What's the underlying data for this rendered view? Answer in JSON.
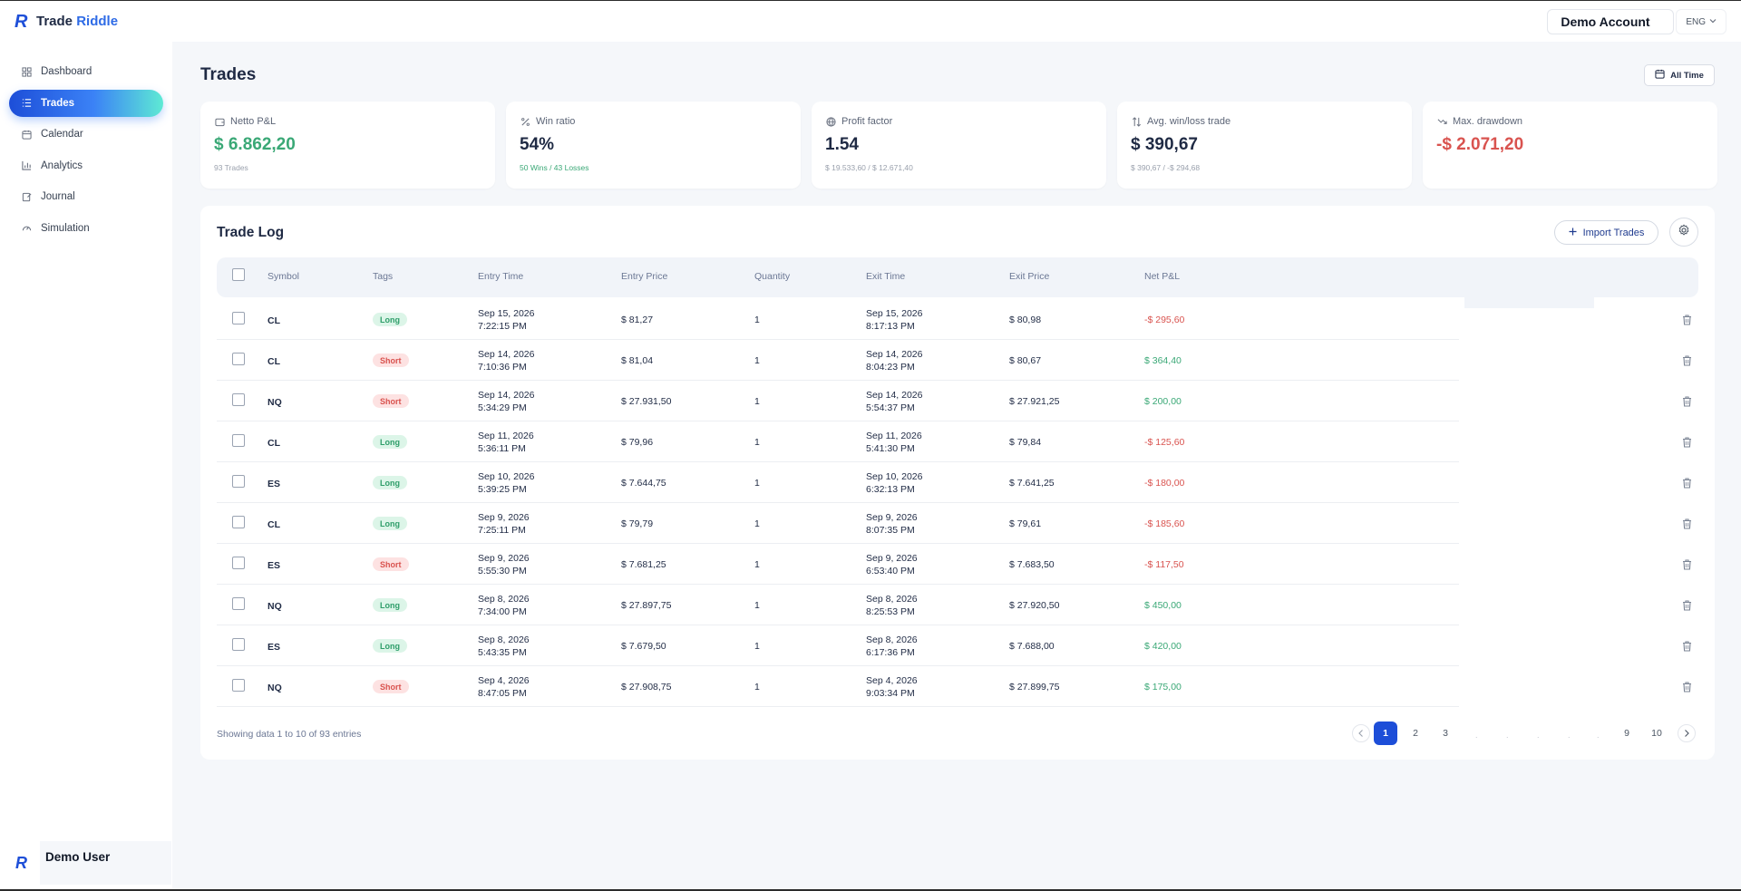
{
  "app": {
    "logo_prefix": "Trade",
    "logo_suffix": "Riddle",
    "account": "Demo Account",
    "language": "ENG",
    "user": "Demo User"
  },
  "nav": [
    {
      "label": "Dashboard",
      "icon": "dashboard-icon",
      "active": false
    },
    {
      "label": "Trades",
      "icon": "list-icon",
      "active": true
    },
    {
      "label": "Calendar",
      "icon": "calendar-icon",
      "active": false
    },
    {
      "label": "Analytics",
      "icon": "bar-chart-icon",
      "active": false
    },
    {
      "label": "Journal",
      "icon": "journal-icon",
      "active": false
    },
    {
      "label": "Simulation",
      "icon": "gauge-icon",
      "active": false
    }
  ],
  "page": {
    "title": "Trades",
    "range_button": "All Time"
  },
  "stats": [
    {
      "label": "Netto P&L",
      "icon": "wallet-icon",
      "value": "$ 6.862,20",
      "sub": "93 Trades",
      "value_tone": "pos",
      "sub_tone": ""
    },
    {
      "label": "Win ratio",
      "icon": "percent-icon",
      "value": "54%",
      "sub": "50 Wins / 43 Losses",
      "value_tone": "",
      "sub_tone": "pos"
    },
    {
      "label": "Profit factor",
      "icon": "globe-icon",
      "value": "1.54",
      "sub": "$ 19.533,60 / $ 12.671,40",
      "value_tone": "",
      "sub_tone": ""
    },
    {
      "label": "Avg. win/loss trade",
      "icon": "swap-icon",
      "value": "$ 390,67",
      "sub": "$ 390,67 / -$ 294,68",
      "value_tone": "",
      "sub_tone": ""
    },
    {
      "label": "Max. drawdown",
      "icon": "trend-down-icon",
      "value": "-$ 2.071,20",
      "sub": "",
      "value_tone": "neg",
      "sub_tone": ""
    }
  ],
  "trade_log": {
    "title": "Trade Log",
    "import_label": "Import Trades",
    "columns": [
      "Symbol",
      "Tags",
      "Entry Time",
      "Entry Price",
      "Quantity",
      "Exit Time",
      "Exit Price",
      "Net P&L"
    ],
    "rows": [
      {
        "symbol": "CL",
        "tag": "Long",
        "entry_date": "Sep 15, 2026",
        "entry_time": "7:22:15 PM",
        "entry_price": "$ 81,27",
        "qty": "1",
        "exit_date": "Sep 15, 2026",
        "exit_time": "8:17:13 PM",
        "exit_price": "$ 80,98",
        "pnl": "-$ 295,60",
        "tone": "neg"
      },
      {
        "symbol": "CL",
        "tag": "Short",
        "entry_date": "Sep 14, 2026",
        "entry_time": "7:10:36 PM",
        "entry_price": "$ 81,04",
        "qty": "1",
        "exit_date": "Sep 14, 2026",
        "exit_time": "8:04:23 PM",
        "exit_price": "$ 80,67",
        "pnl": "$ 364,40",
        "tone": "pos"
      },
      {
        "symbol": "NQ",
        "tag": "Short",
        "entry_date": "Sep 14, 2026",
        "entry_time": "5:34:29 PM",
        "entry_price": "$ 27.931,50",
        "qty": "1",
        "exit_date": "Sep 14, 2026",
        "exit_time": "5:54:37 PM",
        "exit_price": "$ 27.921,25",
        "pnl": "$ 200,00",
        "tone": "pos"
      },
      {
        "symbol": "CL",
        "tag": "Long",
        "entry_date": "Sep 11, 2026",
        "entry_time": "5:36:11 PM",
        "entry_price": "$ 79,96",
        "qty": "1",
        "exit_date": "Sep 11, 2026",
        "exit_time": "5:41:30 PM",
        "exit_price": "$ 79,84",
        "pnl": "-$ 125,60",
        "tone": "neg"
      },
      {
        "symbol": "ES",
        "tag": "Long",
        "entry_date": "Sep 10, 2026",
        "entry_time": "5:39:25 PM",
        "entry_price": "$ 7.644,75",
        "qty": "1",
        "exit_date": "Sep 10, 2026",
        "exit_time": "6:32:13 PM",
        "exit_price": "$ 7.641,25",
        "pnl": "-$ 180,00",
        "tone": "neg"
      },
      {
        "symbol": "CL",
        "tag": "Long",
        "entry_date": "Sep 9, 2026",
        "entry_time": "7:25:11 PM",
        "entry_price": "$ 79,79",
        "qty": "1",
        "exit_date": "Sep 9, 2026",
        "exit_time": "8:07:35 PM",
        "exit_price": "$ 79,61",
        "pnl": "-$ 185,60",
        "tone": "neg"
      },
      {
        "symbol": "ES",
        "tag": "Short",
        "entry_date": "Sep 9, 2026",
        "entry_time": "5:55:30 PM",
        "entry_price": "$ 7.681,25",
        "qty": "1",
        "exit_date": "Sep 9, 2026",
        "exit_time": "6:53:40 PM",
        "exit_price": "$ 7.683,50",
        "pnl": "-$ 117,50",
        "tone": "neg"
      },
      {
        "symbol": "NQ",
        "tag": "Long",
        "entry_date": "Sep 8, 2026",
        "entry_time": "7:34:00 PM",
        "entry_price": "$ 27.897,75",
        "qty": "1",
        "exit_date": "Sep 8, 2026",
        "exit_time": "8:25:53 PM",
        "exit_price": "$ 27.920,50",
        "pnl": "$ 450,00",
        "tone": "pos"
      },
      {
        "symbol": "ES",
        "tag": "Long",
        "entry_date": "Sep 8, 2026",
        "entry_time": "5:43:35 PM",
        "entry_price": "$ 7.679,50",
        "qty": "1",
        "exit_date": "Sep 8, 2026",
        "exit_time": "6:17:36 PM",
        "exit_price": "$ 7.688,00",
        "pnl": "$ 420,00",
        "tone": "pos"
      },
      {
        "symbol": "NQ",
        "tag": "Short",
        "entry_date": "Sep 4, 2026",
        "entry_time": "8:47:05 PM",
        "entry_price": "$ 27.908,75",
        "qty": "1",
        "exit_date": "Sep 4, 2026",
        "exit_time": "9:03:34 PM",
        "exit_price": "$ 27.899,75",
        "pnl": "$ 175,00",
        "tone": "pos"
      }
    ],
    "showing": "Showing data 1 to 10 of 93 entries",
    "pages": [
      "1",
      "2",
      "3",
      "9",
      "10"
    ],
    "active_page": "1"
  }
}
